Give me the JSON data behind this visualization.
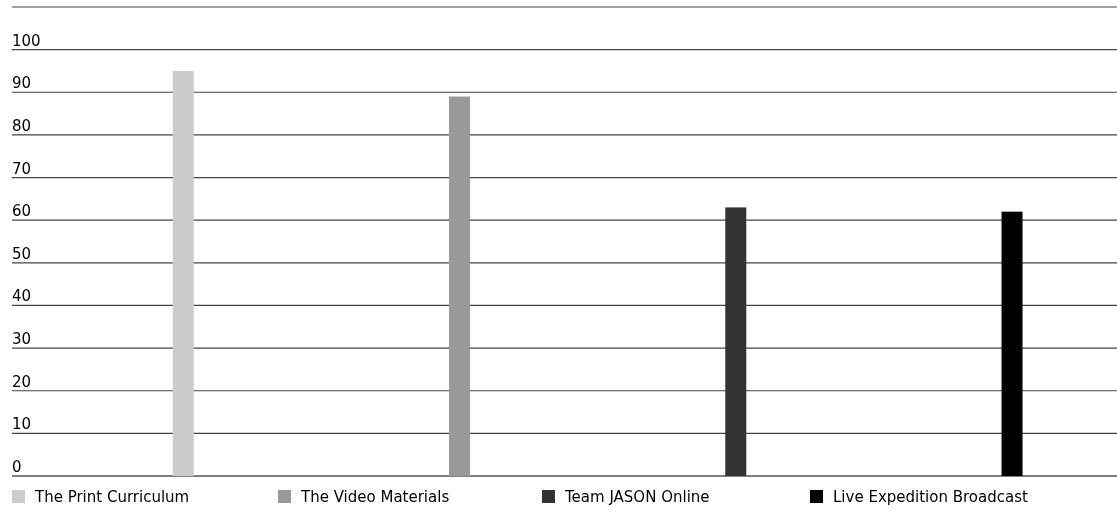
{
  "chart_data": {
    "type": "bar",
    "categories": [
      null,
      null,
      null,
      null
    ],
    "series": [
      {
        "name": "The Print Curriculum",
        "color": "#cccccc",
        "values": [
          95,
          null,
          null,
          null
        ]
      },
      {
        "name": "The Video Materials",
        "color": "#999999",
        "values": [
          null,
          89,
          null,
          null
        ]
      },
      {
        "name": "Team JASON Online",
        "color": "#333333",
        "values": [
          null,
          null,
          63,
          null
        ]
      },
      {
        "name": "Live Expedition Broadcast",
        "color": "#000000",
        "values": [
          null,
          null,
          null,
          62
        ]
      }
    ],
    "ylim": [
      0,
      110
    ],
    "yticks": [
      0,
      10,
      20,
      30,
      40,
      50,
      60,
      70,
      80,
      90,
      100,
      {
        "value": 110,
        "label": null
      }
    ],
    "grid": "y",
    "legend": "bottom"
  }
}
